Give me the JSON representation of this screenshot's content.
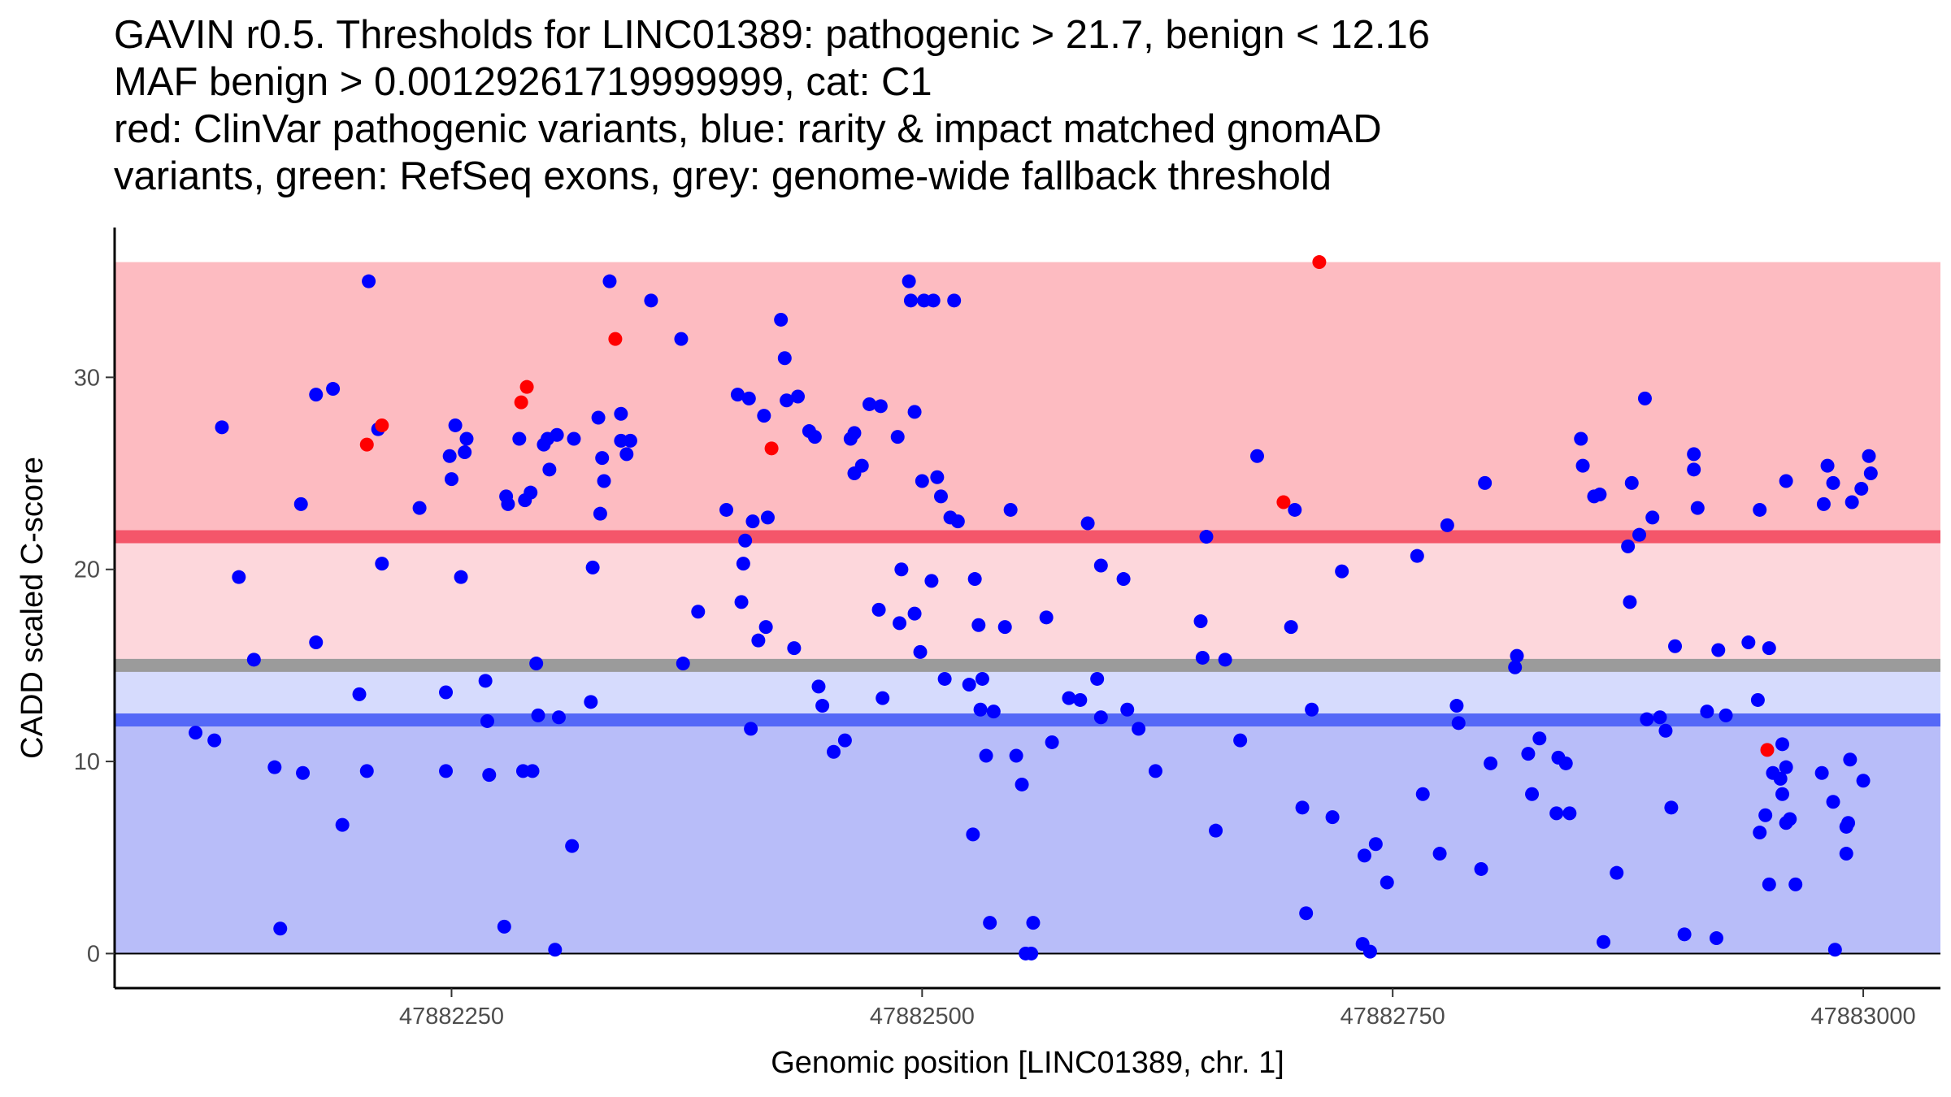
{
  "chart_data": {
    "type": "scatter",
    "title_lines": [
      "GAVIN r0.5. Thresholds for LINC01389: pathogenic > 21.7, benign < 12.16",
      "MAF benign > 0.00129261719999999, cat: C1",
      "red: ClinVar pathogenic variants, blue: rarity & impact matched gnomAD",
      "variants, green: RefSeq exons, grey: genome-wide fallback threshold"
    ],
    "xlabel": "Genomic position [LINC01389, chr. 1]",
    "ylabel": "CADD scaled C-score",
    "x_ticks": [
      47882250,
      47882500,
      47882750,
      47883000
    ],
    "y_ticks": [
      0,
      10,
      20,
      30
    ],
    "xlim": [
      47882071,
      47883041
    ],
    "ylim": [
      -1.8,
      37.8
    ],
    "grid": false,
    "colors": {
      "pathogenic_zone": "#fdbbc1",
      "pathogenic_margin_zone": "#fdd7dc",
      "benign_margin_zone": "#d6dbfd",
      "benign_zone": "#b8bdf9",
      "pathogenic_line": "#f4566a",
      "benign_line": "#5468f7",
      "fallback_line": "#9b9b9b",
      "clinvar_point": "#ff0000",
      "gnomad_point": "#0000ff"
    },
    "zones": {
      "pathogenic": [
        21.7,
        36
      ],
      "pathogenic_margin": [
        15,
        21.7
      ],
      "benign_margin": [
        12.16,
        15
      ],
      "benign": [
        0,
        12.16
      ]
    },
    "thresholds": {
      "pathogenic": 21.7,
      "benign": 12.16,
      "fallback": 15
    },
    "series": [
      {
        "name": "ClinVar pathogenic variants",
        "points": [
          [
            47882205,
            26.5
          ],
          [
            47882213,
            27.5
          ],
          [
            47882287,
            28.7
          ],
          [
            47882290,
            29.5
          ],
          [
            47882337,
            32.0
          ],
          [
            47882420,
            26.3
          ],
          [
            47882692,
            23.5
          ],
          [
            47882711,
            36.0
          ],
          [
            47882949,
            10.6
          ]
        ]
      },
      {
        "name": "rarity & impact matched gnomAD variants",
        "points": [
          [
            47882114,
            11.5
          ],
          [
            47882124,
            11.1
          ],
          [
            47882128,
            27.4
          ],
          [
            47882137,
            19.6
          ],
          [
            47882145,
            15.3
          ],
          [
            47882156,
            9.7
          ],
          [
            47882159,
            1.3
          ],
          [
            47882170,
            23.4
          ],
          [
            47882171,
            9.4
          ],
          [
            47882178,
            29.1
          ],
          [
            47882178,
            16.2
          ],
          [
            47882187,
            29.4
          ],
          [
            47882192,
            6.7
          ],
          [
            47882201,
            13.5
          ],
          [
            47882205,
            9.5
          ],
          [
            47882206,
            35.0
          ],
          [
            47882211,
            27.3
          ],
          [
            47882213,
            20.3
          ],
          [
            47882233,
            23.2
          ],
          [
            47882247,
            13.6
          ],
          [
            47882247,
            9.5
          ],
          [
            47882249,
            25.9
          ],
          [
            47882250,
            24.7
          ],
          [
            47882252,
            27.5
          ],
          [
            47882255,
            19.6
          ],
          [
            47882257,
            26.1
          ],
          [
            47882258,
            26.8
          ],
          [
            47882268,
            14.2
          ],
          [
            47882269,
            12.1
          ],
          [
            47882270,
            9.3
          ],
          [
            47882278,
            1.4
          ],
          [
            47882279,
            23.8
          ],
          [
            47882280,
            23.4
          ],
          [
            47882286,
            26.8
          ],
          [
            47882288,
            9.5
          ],
          [
            47882289,
            23.6
          ],
          [
            47882292,
            24.0
          ],
          [
            47882293,
            9.5
          ],
          [
            47882295,
            15.1
          ],
          [
            47882296,
            12.4
          ],
          [
            47882299,
            26.5
          ],
          [
            47882301,
            26.8
          ],
          [
            47882302,
            25.2
          ],
          [
            47882305,
            0.2
          ],
          [
            47882306,
            27.0
          ],
          [
            47882307,
            12.3
          ],
          [
            47882314,
            5.6
          ],
          [
            47882315,
            26.8
          ],
          [
            47882324,
            13.1
          ],
          [
            47882325,
            20.1
          ],
          [
            47882328,
            27.9
          ],
          [
            47882329,
            22.9
          ],
          [
            47882330,
            25.8
          ],
          [
            47882331,
            24.6
          ],
          [
            47882334,
            35.0
          ],
          [
            47882340,
            28.1
          ],
          [
            47882340,
            26.7
          ],
          [
            47882343,
            26.0
          ],
          [
            47882345,
            26.7
          ],
          [
            47882356,
            34.0
          ],
          [
            47882372,
            32.0
          ],
          [
            47882373,
            15.1
          ],
          [
            47882381,
            17.8
          ],
          [
            47882396,
            23.1
          ],
          [
            47882402,
            29.1
          ],
          [
            47882404,
            18.3
          ],
          [
            47882405,
            20.3
          ],
          [
            47882406,
            21.5
          ],
          [
            47882408,
            28.9
          ],
          [
            47882409,
            11.7
          ],
          [
            47882410,
            22.5
          ],
          [
            47882413,
            16.3
          ],
          [
            47882416,
            28.0
          ],
          [
            47882417,
            17.0
          ],
          [
            47882418,
            22.7
          ],
          [
            47882425,
            33.0
          ],
          [
            47882427,
            31.0
          ],
          [
            47882428,
            28.8
          ],
          [
            47882432,
            15.9
          ],
          [
            47882434,
            29.0
          ],
          [
            47882440,
            27.2
          ],
          [
            47882443,
            26.9
          ],
          [
            47882445,
            13.9
          ],
          [
            47882447,
            12.9
          ],
          [
            47882453,
            10.5
          ],
          [
            47882459,
            11.1
          ],
          [
            47882462,
            26.8
          ],
          [
            47882464,
            25.0
          ],
          [
            47882464,
            27.1
          ],
          [
            47882468,
            25.4
          ],
          [
            47882472,
            28.6
          ],
          [
            47882477,
            17.9
          ],
          [
            47882478,
            28.5
          ],
          [
            47882479,
            13.3
          ],
          [
            47882487,
            26.9
          ],
          [
            47882488,
            17.2
          ],
          [
            47882489,
            20.0
          ],
          [
            47882493,
            35.0
          ],
          [
            47882494,
            34.0
          ],
          [
            47882496,
            28.2
          ],
          [
            47882496,
            17.7
          ],
          [
            47882499,
            15.7
          ],
          [
            47882500,
            24.6
          ],
          [
            47882501,
            34.0
          ],
          [
            47882505,
            19.4
          ],
          [
            47882506,
            34.0
          ],
          [
            47882508,
            24.8
          ],
          [
            47882510,
            23.8
          ],
          [
            47882512,
            14.3
          ],
          [
            47882515,
            22.7
          ],
          [
            47882517,
            34.0
          ],
          [
            47882519,
            22.5
          ],
          [
            47882525,
            14.0
          ],
          [
            47882527,
            6.2
          ],
          [
            47882528,
            19.5
          ],
          [
            47882530,
            17.1
          ],
          [
            47882531,
            12.7
          ],
          [
            47882532,
            14.3
          ],
          [
            47882534,
            10.3
          ],
          [
            47882536,
            1.6
          ],
          [
            47882538,
            12.6
          ],
          [
            47882544,
            17.0
          ],
          [
            47882547,
            23.1
          ],
          [
            47882550,
            10.3
          ],
          [
            47882553,
            8.8
          ],
          [
            47882555,
            0.0
          ],
          [
            47882558,
            0.0
          ],
          [
            47882559,
            1.6
          ],
          [
            47882566,
            17.5
          ],
          [
            47882569,
            11.0
          ],
          [
            47882578,
            13.3
          ],
          [
            47882584,
            13.2
          ],
          [
            47882588,
            22.4
          ],
          [
            47882593,
            14.3
          ],
          [
            47882595,
            12.3
          ],
          [
            47882595,
            20.2
          ],
          [
            47882607,
            19.5
          ],
          [
            47882609,
            12.7
          ],
          [
            47882615,
            11.7
          ],
          [
            47882624,
            9.5
          ],
          [
            47882648,
            17.3
          ],
          [
            47882649,
            15.4
          ],
          [
            47882651,
            21.7
          ],
          [
            47882656,
            6.4
          ],
          [
            47882661,
            15.3
          ],
          [
            47882669,
            11.1
          ],
          [
            47882678,
            25.9
          ],
          [
            47882696,
            17.0
          ],
          [
            47882698,
            23.1
          ],
          [
            47882702,
            7.6
          ],
          [
            47882704,
            2.1
          ],
          [
            47882707,
            12.7
          ],
          [
            47882718,
            7.1
          ],
          [
            47882723,
            19.9
          ],
          [
            47882734,
            0.5
          ],
          [
            47882735,
            5.1
          ],
          [
            47882738,
            0.1
          ],
          [
            47882741,
            5.7
          ],
          [
            47882747,
            3.7
          ],
          [
            47882763,
            20.7
          ],
          [
            47882766,
            8.3
          ],
          [
            47882775,
            5.2
          ],
          [
            47882779,
            22.3
          ],
          [
            47882784,
            12.9
          ],
          [
            47882785,
            12.0
          ],
          [
            47882797,
            4.4
          ],
          [
            47882799,
            24.5
          ],
          [
            47882802,
            9.9
          ],
          [
            47882815,
            14.9
          ],
          [
            47882816,
            15.5
          ],
          [
            47882822,
            10.4
          ],
          [
            47882824,
            8.3
          ],
          [
            47882828,
            11.2
          ],
          [
            47882837,
            7.3
          ],
          [
            47882838,
            10.2
          ],
          [
            47882842,
            9.9
          ],
          [
            47882844,
            7.3
          ],
          [
            47882850,
            26.8
          ],
          [
            47882851,
            25.4
          ],
          [
            47882857,
            23.8
          ],
          [
            47882860,
            23.9
          ],
          [
            47882862,
            0.6
          ],
          [
            47882869,
            4.2
          ],
          [
            47882875,
            21.2
          ],
          [
            47882876,
            18.3
          ],
          [
            47882877,
            24.5
          ],
          [
            47882881,
            21.8
          ],
          [
            47882884,
            28.9
          ],
          [
            47882885,
            12.2
          ],
          [
            47882888,
            22.7
          ],
          [
            47882892,
            12.3
          ],
          [
            47882895,
            11.6
          ],
          [
            47882898,
            7.6
          ],
          [
            47882900,
            16.0
          ],
          [
            47882905,
            1.0
          ],
          [
            47882910,
            26.0
          ],
          [
            47882910,
            25.2
          ],
          [
            47882912,
            23.2
          ],
          [
            47882917,
            12.6
          ],
          [
            47882922,
            0.8
          ],
          [
            47882923,
            15.8
          ],
          [
            47882927,
            12.4
          ],
          [
            47882939,
            16.2
          ],
          [
            47882944,
            13.2
          ],
          [
            47882945,
            23.1
          ],
          [
            47882950,
            15.9
          ],
          [
            47882957,
            10.9
          ],
          [
            47882959,
            24.6
          ],
          [
            47882959,
            9.7
          ],
          [
            47882978,
            9.4
          ],
          [
            47882979,
            23.4
          ],
          [
            47882981,
            25.4
          ],
          [
            47882984,
            24.5
          ],
          [
            47882993,
            10.1
          ],
          [
            47882994,
            23.5
          ],
          [
            47882999,
            24.2
          ],
          [
            47883000,
            9.0
          ],
          [
            47883003,
            25.9
          ],
          [
            47883004,
            25.0
          ],
          [
            47882945,
            6.3
          ],
          [
            47882948,
            7.2
          ],
          [
            47882950,
            3.6
          ],
          [
            47882952,
            9.4
          ],
          [
            47882956,
            9.1
          ],
          [
            47882957,
            8.3
          ],
          [
            47882959,
            6.8
          ],
          [
            47882961,
            7.0
          ],
          [
            47882964,
            3.6
          ],
          [
            47882984,
            7.9
          ],
          [
            47882985,
            0.2
          ],
          [
            47882991,
            6.6
          ],
          [
            47882992,
            6.8
          ],
          [
            47882991,
            5.2
          ]
        ]
      }
    ]
  }
}
